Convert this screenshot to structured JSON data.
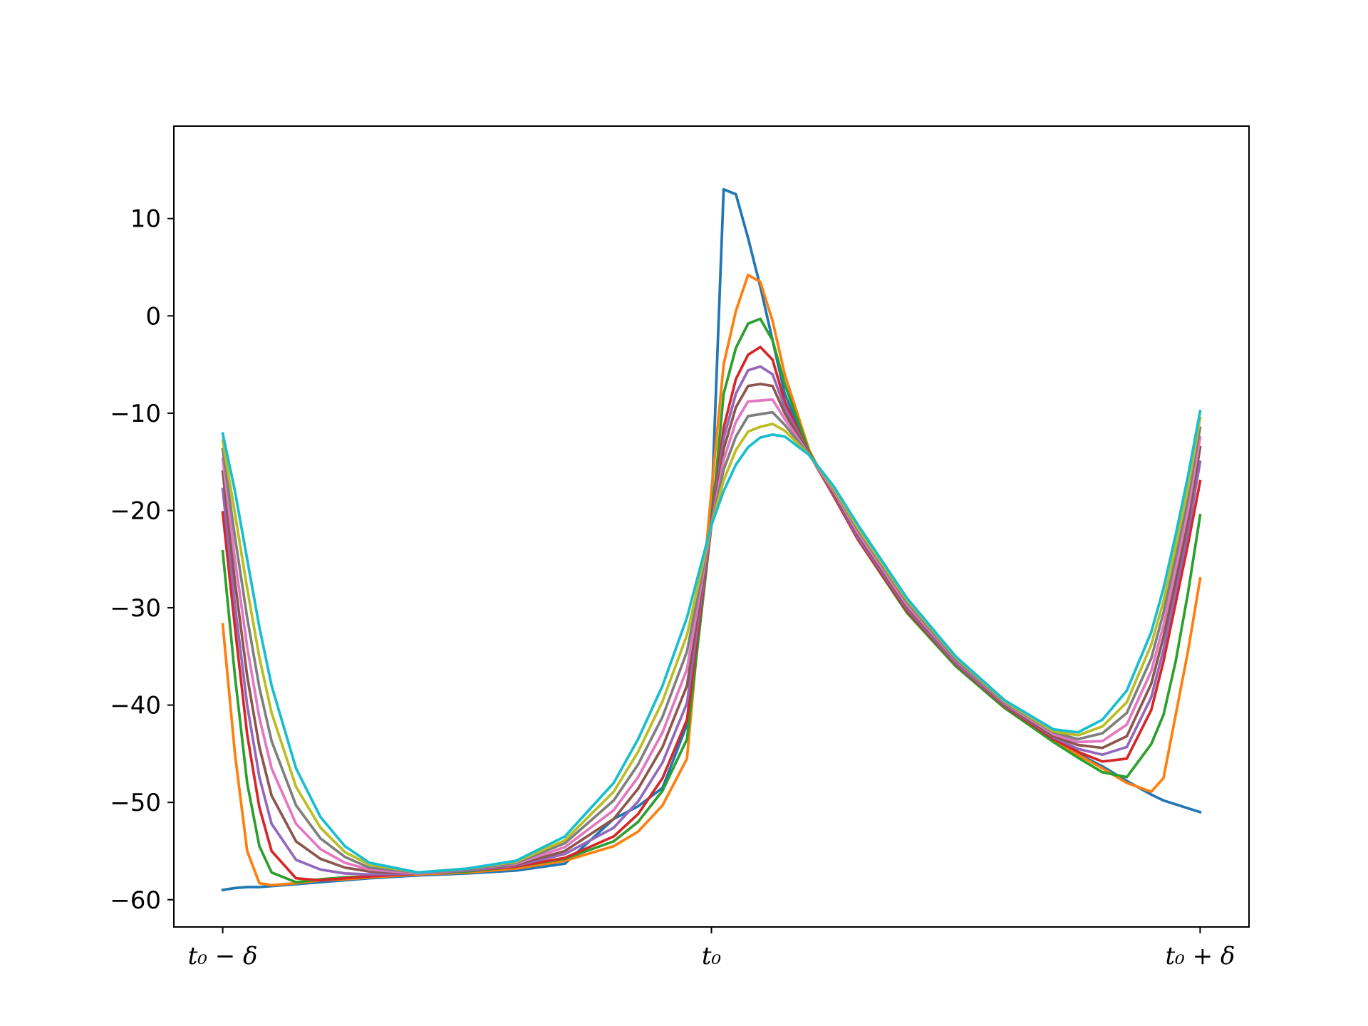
{
  "chart_data": {
    "type": "line",
    "x": [
      -1,
      -0.975,
      -0.95,
      -0.925,
      -0.9,
      -0.85,
      -0.8,
      -0.75,
      -0.7,
      -0.6,
      -0.5,
      -0.4,
      -0.3,
      -0.2,
      -0.15,
      -0.1,
      -0.05,
      0,
      0.025,
      0.05,
      0.075,
      0.1,
      0.125,
      0.15,
      0.2,
      0.25,
      0.3,
      0.4,
      0.5,
      0.6,
      0.7,
      0.75,
      0.8,
      0.85,
      0.9,
      0.925,
      0.95,
      0.975,
      1
    ],
    "xlim": [
      -1.1,
      1.1
    ],
    "xticks": [
      {
        "value": -1,
        "label": "t₀ − δ"
      },
      {
        "value": 0,
        "label": "t₀"
      },
      {
        "value": 1,
        "label": "t₀ + δ"
      }
    ],
    "ylim": [
      -62.8,
      19.5
    ],
    "yticks": [
      {
        "value": -60,
        "label": "−60"
      },
      {
        "value": -50,
        "label": "−50"
      },
      {
        "value": -40,
        "label": "−40"
      },
      {
        "value": -30,
        "label": "−30"
      },
      {
        "value": -20,
        "label": "−20"
      },
      {
        "value": -10,
        "label": "−10"
      },
      0,
      10
    ],
    "series": [
      {
        "color": "#1f77b4",
        "values": [
          -59,
          -58.8,
          -58.7,
          -58.7,
          -58.6,
          -58.4,
          -58.2,
          -58,
          -57.8,
          -57.5,
          -57.3,
          -57,
          -56.3,
          -51.7,
          -50.4,
          -48.5,
          -42,
          -20,
          13,
          12.5,
          8,
          3,
          -2.5,
          -8,
          -14,
          -18.5,
          -23,
          -30.5,
          -36,
          -40.3,
          -43.6,
          -45,
          -46.3,
          -47.8,
          -49.2,
          -49.8,
          -50.2,
          -50.6,
          -51
        ]
      },
      {
        "color": "#ff7f0e",
        "values": [
          -31.7,
          -45,
          -55,
          -58.3,
          -58.5,
          -58.3,
          -58,
          -57.9,
          -57.7,
          -57.4,
          -57.2,
          -56.8,
          -56,
          -54.5,
          -53,
          -50.3,
          -45.5,
          -18,
          -5,
          0.5,
          4.2,
          3.5,
          -0.5,
          -6,
          -13.8,
          -18.5,
          -23,
          -30.5,
          -36,
          -40.3,
          -43.7,
          -45.1,
          -46.5,
          -48,
          -48.9,
          -47.5,
          -41,
          -34.5,
          -27
        ]
      },
      {
        "color": "#2ca02c",
        "values": [
          -24.2,
          -37,
          -48,
          -54.5,
          -57.2,
          -58.2,
          -57.9,
          -57.7,
          -57.6,
          -57.3,
          -57.1,
          -56.6,
          -55.8,
          -54,
          -52,
          -48.8,
          -43.5,
          -21.5,
          -8,
          -3.3,
          -0.8,
          -0.3,
          -2.5,
          -7,
          -14,
          -18.5,
          -23,
          -30.5,
          -36,
          -40.3,
          -43.8,
          -45.4,
          -46.9,
          -47.4,
          -44,
          -41,
          -35.5,
          -28.5,
          -20.5
        ]
      },
      {
        "color": "#d62728",
        "values": [
          -20.2,
          -32,
          -43,
          -50.5,
          -55,
          -57.8,
          -58,
          -57.8,
          -57.6,
          -57.3,
          -57,
          -56.6,
          -55.7,
          -53.5,
          -51.2,
          -47.5,
          -41.5,
          -21.5,
          -11.5,
          -6.5,
          -4,
          -3.2,
          -4.5,
          -8.8,
          -14.2,
          -18.5,
          -23,
          -30.3,
          -35.8,
          -40.1,
          -43.5,
          -44.8,
          -45.8,
          -45.5,
          -40.5,
          -35.5,
          -29.5,
          -23.5,
          -17
        ]
      },
      {
        "color": "#9467bd",
        "values": [
          -17.8,
          -29.7,
          -40,
          -47.4,
          -52.2,
          -55.9,
          -56.9,
          -57.3,
          -57.4,
          -57.3,
          -57,
          -56.5,
          -55.3,
          -52.6,
          -49.9,
          -45.9,
          -39.8,
          -21.5,
          -12.6,
          -8,
          -5.6,
          -5.2,
          -6,
          -9.4,
          -14.2,
          -18.3,
          -22.8,
          -30.1,
          -35.7,
          -40,
          -43.3,
          -44.5,
          -45.1,
          -44.3,
          -39.2,
          -34.3,
          -28.3,
          -22.3,
          -15
        ]
      },
      {
        "color": "#8c564b",
        "values": [
          -16,
          -27.3,
          -37,
          -44.3,
          -49.3,
          -54,
          -55.8,
          -56.7,
          -57.1,
          -57.3,
          -56.9,
          -56.4,
          -55,
          -51.7,
          -48.6,
          -44.3,
          -38,
          -21.5,
          -13.7,
          -9.4,
          -7.2,
          -7,
          -7.2,
          -10,
          -14.2,
          -18.2,
          -22.5,
          -29.9,
          -35.5,
          -39.9,
          -43.2,
          -44.1,
          -44.4,
          -43.2,
          -37.8,
          -33,
          -27.2,
          -21.2,
          -13.5
        ]
      },
      {
        "color": "#e377c2",
        "values": [
          -14.7,
          -25,
          -34,
          -41.3,
          -46.5,
          -52.2,
          -54.8,
          -56.2,
          -56.9,
          -57.3,
          -56.9,
          -56.3,
          -54.6,
          -50.8,
          -47.4,
          -42.8,
          -36.3,
          -21.5,
          -14.8,
          -10.9,
          -8.8,
          -8.7,
          -8.6,
          -10.6,
          -14.3,
          -18,
          -22.3,
          -29.7,
          -35.4,
          -39.8,
          -43,
          -43.8,
          -43.7,
          -42,
          -36.5,
          -31.8,
          -26,
          -20,
          -12.5
        ]
      },
      {
        "color": "#7f7f7f",
        "values": [
          -13.7,
          -22.7,
          -31,
          -38.2,
          -43.7,
          -50.3,
          -53.7,
          -55.6,
          -56.7,
          -57.2,
          -56.9,
          -56.2,
          -54.2,
          -49.8,
          -46.1,
          -41.2,
          -34.5,
          -21.5,
          -15.8,
          -12.4,
          -10.3,
          -10.1,
          -9.9,
          -11.2,
          -14.3,
          -17.8,
          -22,
          -29.4,
          -35.3,
          -39.7,
          -42.8,
          -43.5,
          -42.9,
          -40.8,
          -35.2,
          -30.5,
          -24.8,
          -18.8,
          -11.5
        ]
      },
      {
        "color": "#bcbd22",
        "values": [
          -12.8,
          -20.3,
          -28,
          -35.1,
          -40.8,
          -48.4,
          -52.6,
          -55.1,
          -56.4,
          -57.2,
          -56.8,
          -56.1,
          -53.9,
          -48.9,
          -44.8,
          -39.6,
          -32.8,
          -21.5,
          -16.9,
          -13.8,
          -11.9,
          -11.4,
          -11.1,
          -11.8,
          -14.3,
          -17.7,
          -21.8,
          -29.2,
          -35.1,
          -39.6,
          -42.7,
          -43.1,
          -42.2,
          -39.7,
          -33.8,
          -29.3,
          -23.7,
          -17.7,
          -10.5
        ]
      },
      {
        "color": "#17becf",
        "values": [
          -12.1,
          -18,
          -25,
          -32,
          -38,
          -46.5,
          -51.5,
          -54.5,
          -56.2,
          -57.2,
          -56.8,
          -56,
          -53.5,
          -48,
          -43.5,
          -38,
          -31,
          -21.5,
          -18,
          -15.3,
          -13.5,
          -12.5,
          -12.2,
          -12.4,
          -14.3,
          -17.5,
          -21.5,
          -29,
          -35,
          -39.5,
          -42.5,
          -42.8,
          -41.5,
          -38.5,
          -32.5,
          -28,
          -22.5,
          -16.5,
          -9.8
        ]
      }
    ]
  }
}
